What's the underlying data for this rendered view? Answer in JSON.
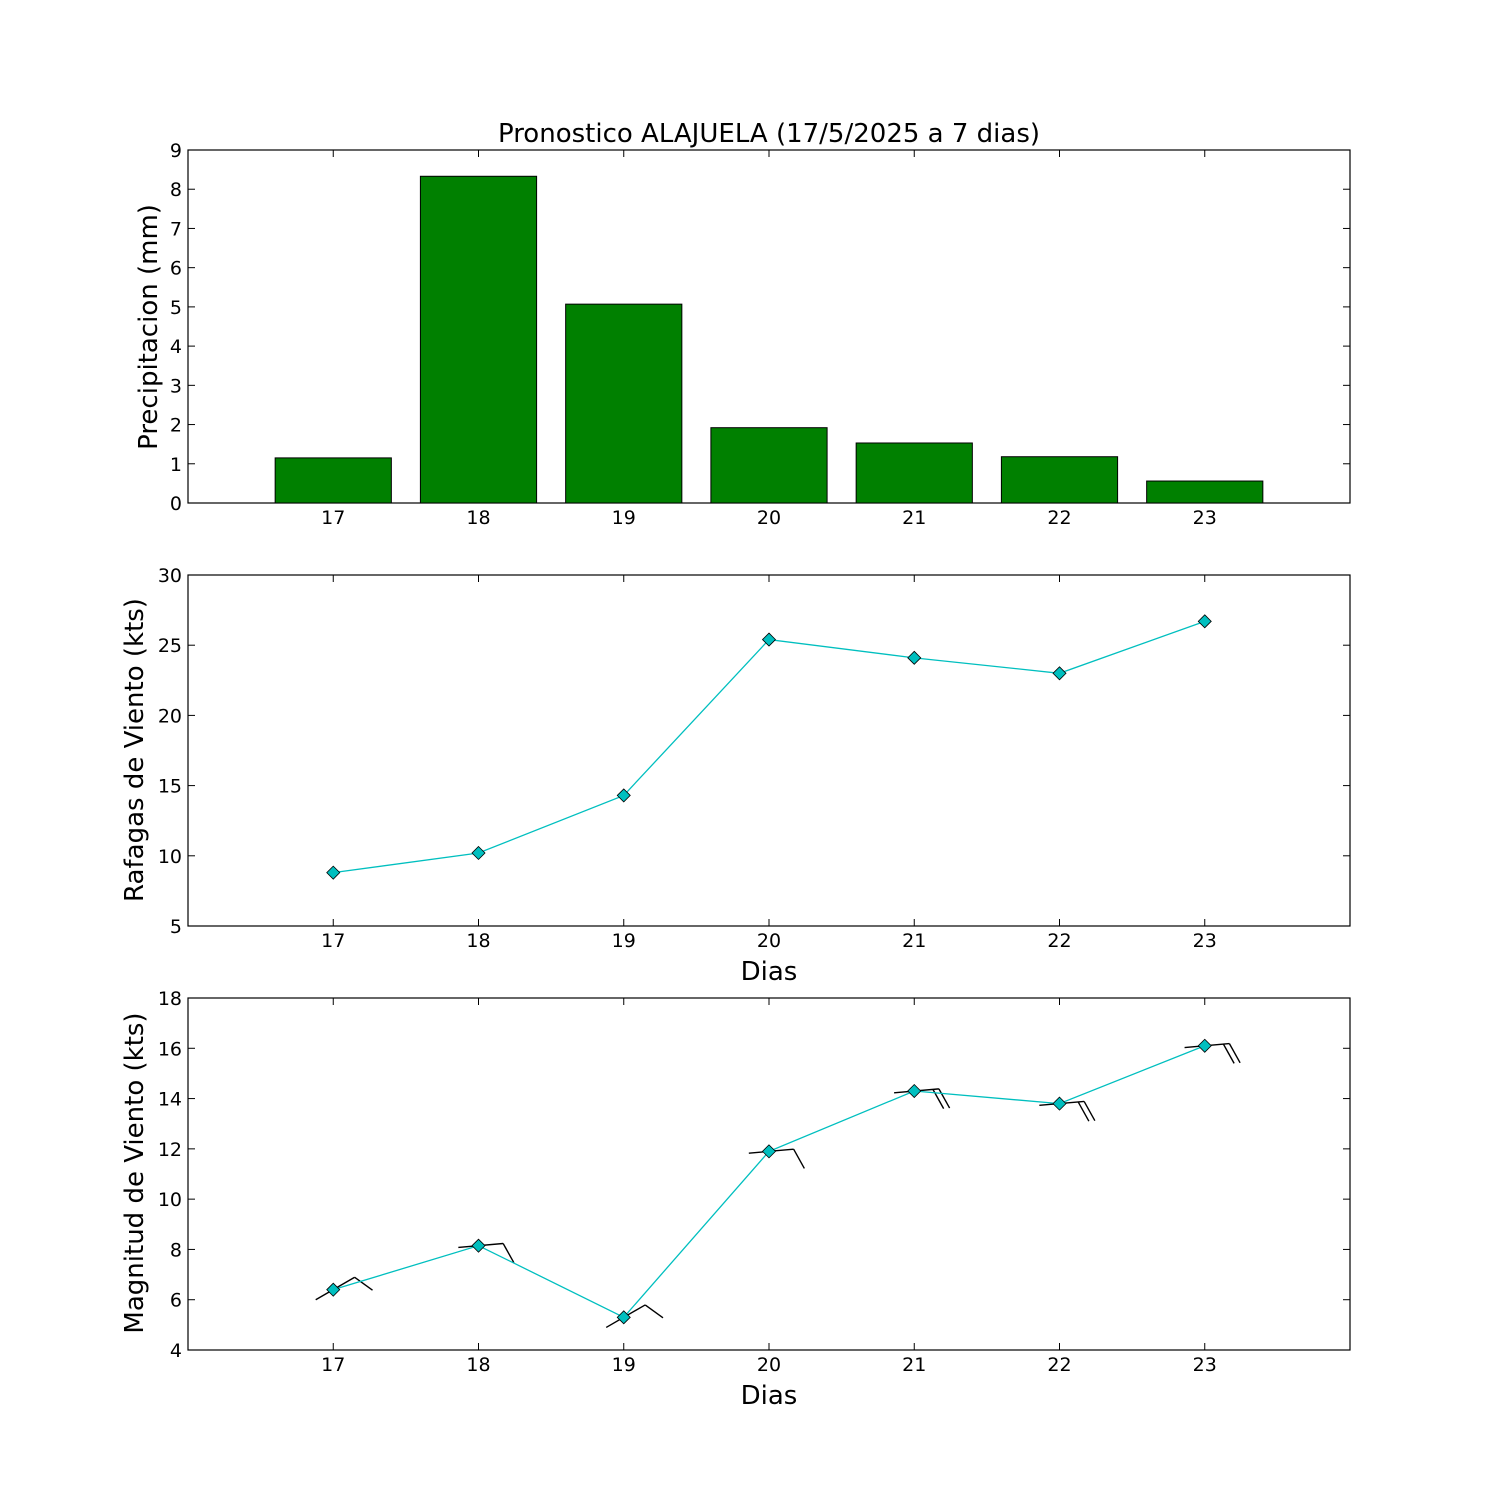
{
  "chart_data": [
    {
      "type": "bar",
      "title": "Pronostico  ALAJUELA (17/5/2025 a 7 dias)",
      "xlabel": "",
      "ylabel": "Precipitacion (mm)",
      "categories": [
        "17",
        "18",
        "19",
        "20",
        "21",
        "22",
        "23"
      ],
      "values": [
        1.15,
        8.33,
        5.07,
        1.92,
        1.53,
        1.18,
        0.56
      ],
      "xlim": [
        16,
        24
      ],
      "ylim": [
        0,
        9
      ],
      "yticks": [
        "0",
        "1",
        "2",
        "3",
        "4",
        "5",
        "6",
        "7",
        "8",
        "9"
      ],
      "color": "#008000",
      "edge_color": "#000000",
      "grid": false
    },
    {
      "type": "line",
      "title": "",
      "xlabel": "Dias",
      "ylabel": "Rafagas de Viento (kts)",
      "x": [
        17,
        18,
        19,
        20,
        21,
        22,
        23
      ],
      "values": [
        8.8,
        10.2,
        14.3,
        25.4,
        24.1,
        23.0,
        26.7
      ],
      "xticks": [
        "17",
        "18",
        "19",
        "20",
        "21",
        "22",
        "23"
      ],
      "xlim": [
        16,
        24
      ],
      "ylim": [
        5,
        30
      ],
      "yticks": [
        "5",
        "10",
        "15",
        "20",
        "25",
        "30"
      ],
      "marker": "diamond",
      "color": "#00bfbf",
      "grid": false
    },
    {
      "type": "line",
      "title": "",
      "xlabel": "Dias",
      "ylabel": "Magnitud de Viento (kts)",
      "x": [
        17,
        18,
        19,
        20,
        21,
        22,
        23
      ],
      "values": [
        6.4,
        8.15,
        5.3,
        11.9,
        14.3,
        13.8,
        16.1
      ],
      "wind_barbs": [
        {
          "x": 17,
          "direction": "southwest",
          "barbs": 1
        },
        {
          "x": 18,
          "direction": "west",
          "barbs": 1
        },
        {
          "x": 19,
          "direction": "southwest",
          "barbs": 1
        },
        {
          "x": 20,
          "direction": "west",
          "barbs": 1
        },
        {
          "x": 21,
          "direction": "west",
          "barbs": 2
        },
        {
          "x": 22,
          "direction": "west",
          "barbs": 2
        },
        {
          "x": 23,
          "direction": "west",
          "barbs": 2
        }
      ],
      "xticks": [
        "17",
        "18",
        "19",
        "20",
        "21",
        "22",
        "23"
      ],
      "xlim": [
        16,
        24
      ],
      "ylim": [
        4,
        18
      ],
      "yticks": [
        "4",
        "6",
        "8",
        "10",
        "12",
        "14",
        "16",
        "18"
      ],
      "marker": "diamond",
      "color": "#00bfbf",
      "grid": false
    }
  ]
}
